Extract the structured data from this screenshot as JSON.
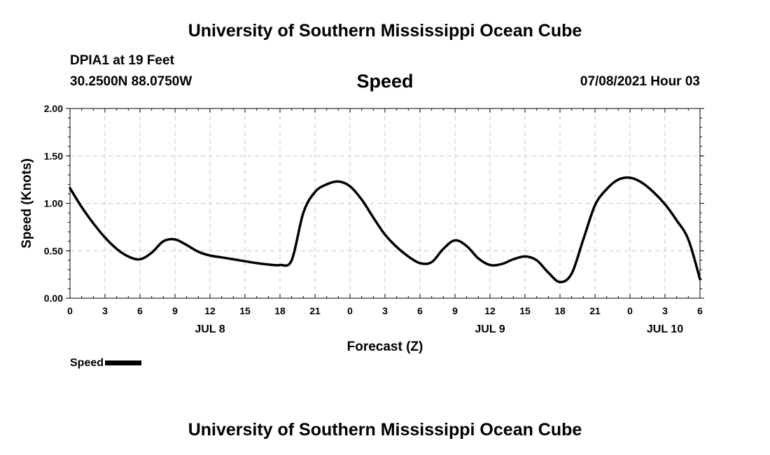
{
  "page": {
    "top_title": "University of Southern Mississippi Ocean Cube",
    "bottom_title": "University of Southern Mississippi Ocean Cube",
    "station": "DPIA1 at 19 Feet",
    "coords": "30.2500N  88.0750W",
    "date_label": "07/08/2021 Hour 03"
  },
  "legend": {
    "label": "Speed"
  },
  "chart_data": {
    "type": "line",
    "title": "Speed",
    "xlabel": "Forecast (Z)",
    "ylabel": "Speed (Knots)",
    "ylim": [
      0,
      2
    ],
    "xlim": [
      0,
      54
    ],
    "grid": true,
    "legend_position": "bottom-left",
    "y_ticks": [
      {
        "value": 0,
        "label": "0.00"
      },
      {
        "value": 0.5,
        "label": "0.50"
      },
      {
        "value": 1.0,
        "label": "1.00"
      },
      {
        "value": 1.5,
        "label": "1.50"
      },
      {
        "value": 2.0,
        "label": "2.00"
      }
    ],
    "x_ticks": [
      {
        "value": 0,
        "label": "0"
      },
      {
        "value": 3,
        "label": "3"
      },
      {
        "value": 6,
        "label": "6"
      },
      {
        "value": 9,
        "label": "9"
      },
      {
        "value": 12,
        "label": "12"
      },
      {
        "value": 15,
        "label": "15"
      },
      {
        "value": 18,
        "label": "18"
      },
      {
        "value": 21,
        "label": "21"
      },
      {
        "value": 24,
        "label": "0"
      },
      {
        "value": 27,
        "label": "3"
      },
      {
        "value": 30,
        "label": "6"
      },
      {
        "value": 33,
        "label": "9"
      },
      {
        "value": 36,
        "label": "12"
      },
      {
        "value": 39,
        "label": "15"
      },
      {
        "value": 42,
        "label": "18"
      },
      {
        "value": 45,
        "label": "21"
      },
      {
        "value": 48,
        "label": "0"
      },
      {
        "value": 51,
        "label": "3"
      },
      {
        "value": 54,
        "label": "6"
      }
    ],
    "day_labels": [
      {
        "value": 12,
        "label": "JUL 8"
      },
      {
        "value": 36,
        "label": "JUL 9"
      },
      {
        "value": 51,
        "label": "JUL 10"
      }
    ],
    "series": [
      {
        "name": "Speed",
        "color": "#000000",
        "x": [
          0,
          1,
          2,
          3,
          4,
          5,
          6,
          7,
          8,
          9,
          10,
          11,
          12,
          13,
          14,
          15,
          16,
          17,
          18,
          19,
          20,
          21,
          22,
          23,
          24,
          25,
          26,
          27,
          28,
          29,
          30,
          31,
          32,
          33,
          34,
          35,
          36,
          37,
          38,
          39,
          40,
          41,
          42,
          43,
          44,
          45,
          46,
          47,
          48,
          49,
          50,
          51,
          52,
          53,
          54
        ],
        "values": [
          1.16,
          0.96,
          0.79,
          0.64,
          0.52,
          0.44,
          0.41,
          0.48,
          0.6,
          0.62,
          0.56,
          0.49,
          0.45,
          0.43,
          0.41,
          0.39,
          0.37,
          0.355,
          0.35,
          0.4,
          0.9,
          1.12,
          1.2,
          1.23,
          1.18,
          1.04,
          0.85,
          0.67,
          0.54,
          0.44,
          0.37,
          0.38,
          0.52,
          0.61,
          0.55,
          0.42,
          0.35,
          0.36,
          0.41,
          0.44,
          0.4,
          0.27,
          0.17,
          0.26,
          0.62,
          0.98,
          1.15,
          1.25,
          1.27,
          1.22,
          1.12,
          0.99,
          0.82,
          0.62,
          0.2
        ]
      }
    ]
  }
}
